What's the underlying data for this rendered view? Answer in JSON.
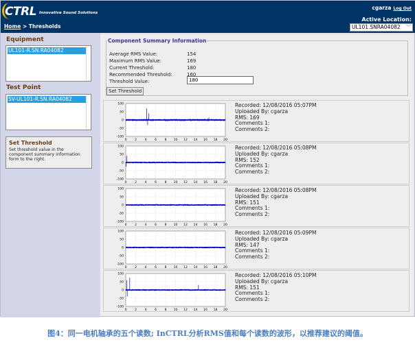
{
  "header": {
    "logo_text": "CTRL",
    "logo_tagline": "Innovative Sound Solutions",
    "breadcrumb_home": "Home",
    "breadcrumb_sep": " > ",
    "breadcrumb_current": "Thresholds",
    "username": "cgarza",
    "logout": "Log Out",
    "active_location_label": "Active Location:",
    "active_location_value": "UL101.SNRA04082"
  },
  "sidebar": {
    "equipment_label": "Equipment",
    "equipment_selected": "UL101-R.SN.RA04082",
    "test_point_label": "Test Point",
    "test_point_selected": "SV-UL101-R.SN.RA04082",
    "help_title": "Set Threshold",
    "help_text": "Set threshold value in the component summary information form to the right."
  },
  "summary": {
    "legend": "Component Summary Information",
    "rows": [
      {
        "label": "Average RMS Value:",
        "value": "154"
      },
      {
        "label": "Maximum RMS Value:",
        "value": "169"
      },
      {
        "label": "Current Threshold:",
        "value": "180"
      },
      {
        "label": "Recommended Threshold:",
        "value": "160"
      }
    ],
    "threshold_label": "Threshold Value:",
    "threshold_value": "180",
    "set_button": "Set Threshold"
  },
  "readings": [
    {
      "recorded": "Recorded: 12/08/2016 05:07PM",
      "uploaded": "Uploaded By: cgarza",
      "rms": "RMS: 169",
      "c1": "Comments 1:",
      "c2": "Comments 2:"
    },
    {
      "recorded": "Recorded: 12/08/2016 05:08PM",
      "uploaded": "Uploaded By: cgarza",
      "rms": "RMS: 152",
      "c1": "Comments 1:",
      "c2": "Comments 2:"
    },
    {
      "recorded": "Recorded: 12/08/2016 05:08PM",
      "uploaded": "Uploaded By: cgarza",
      "rms": "RMS: 151",
      "c1": "Comments 1:",
      "c2": "Comments 2:"
    },
    {
      "recorded": "Recorded: 12/08/2016 05:09PM",
      "uploaded": "Uploaded By: cgarza",
      "rms": "RMS: 147",
      "c1": "Comments 1:",
      "c2": "Comments 2:"
    },
    {
      "recorded": "Recorded: 12/08/2016 05:10PM",
      "uploaded": "Uploaded By: cgarza",
      "rms": "RMS: 151",
      "c1": "Comments 1:",
      "c2": "Comments 2:"
    }
  ],
  "chart_data": [
    {
      "type": "line",
      "xlim": [
        0,
        20
      ],
      "ylim": [
        -100,
        100
      ],
      "xticks": [
        0,
        2,
        4,
        6,
        8,
        10,
        12,
        14,
        16,
        18,
        20
      ],
      "yticks": [
        100,
        50,
        0,
        -50,
        -100
      ],
      "grid": true,
      "color": "#0000cc",
      "noise_amplitude": 6,
      "peaks": [
        {
          "x": 4.2,
          "y": 70
        },
        {
          "x": 4.4,
          "y": -30
        },
        {
          "x": 4.6,
          "y": 40
        },
        {
          "x": 16.7,
          "y": 15
        }
      ]
    },
    {
      "type": "line",
      "xlim": [
        0,
        20
      ],
      "ylim": [
        -100,
        100
      ],
      "xticks": [
        0,
        2,
        4,
        6,
        8,
        10,
        12,
        14,
        16,
        18,
        20
      ],
      "yticks": [
        100,
        50,
        0,
        -50,
        -100
      ],
      "grid": true,
      "color": "#0000cc",
      "noise_amplitude": 5,
      "peaks": [
        {
          "x": 0.2,
          "y": 40
        },
        {
          "x": 0.1,
          "y": -25
        }
      ]
    },
    {
      "type": "line",
      "xlim": [
        0,
        20
      ],
      "ylim": [
        -100,
        100
      ],
      "xticks": [
        0,
        2,
        4,
        6,
        8,
        10,
        12,
        14,
        16,
        18,
        20
      ],
      "yticks": [
        100,
        50,
        0,
        -50,
        -100
      ],
      "grid": true,
      "color": "#0000cc",
      "noise_amplitude": 5,
      "peaks": []
    },
    {
      "type": "line",
      "xlim": [
        0,
        20
      ],
      "ylim": [
        -100,
        100
      ],
      "xticks": [
        0,
        2,
        4,
        6,
        8,
        10,
        12,
        14,
        16,
        18,
        20
      ],
      "yticks": [
        100,
        50,
        0,
        -50,
        -100
      ],
      "grid": true,
      "color": "#0000cc",
      "noise_amplitude": 5,
      "peaks": []
    },
    {
      "type": "line",
      "xlim": [
        0,
        20
      ],
      "ylim": [
        -100,
        100
      ],
      "xticks": [
        0,
        2,
        4,
        6,
        8,
        10,
        12,
        14,
        16,
        18,
        20
      ],
      "yticks": [
        100,
        50,
        0,
        -50,
        -100
      ],
      "grid": true,
      "color": "#0000cc",
      "noise_amplitude": 5,
      "peaks": [
        {
          "x": 0.2,
          "y": 60
        },
        {
          "x": 0.3,
          "y": -40
        },
        {
          "x": 0.8,
          "y": 75
        },
        {
          "x": 14.6,
          "y": 30
        }
      ]
    }
  ],
  "caption": "图4：同一电机轴承的五个读数; InCTRL分析RMS值和每个读数的波形，以推荐建议的阈值。"
}
